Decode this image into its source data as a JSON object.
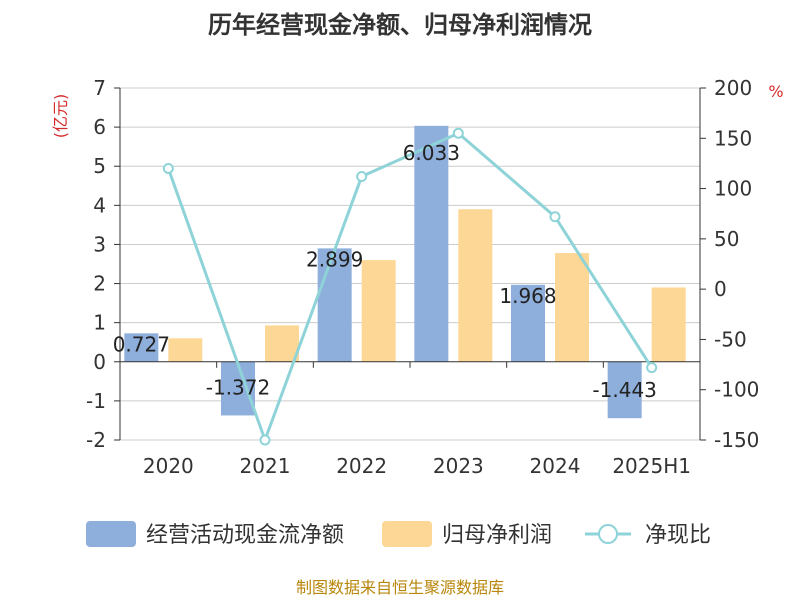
{
  "chart_data": {
    "type": "bar",
    "title": "历年经营现金净额、归母净利润情况",
    "categories": [
      "2020",
      "2021",
      "2022",
      "2023",
      "2024",
      "2025H1"
    ],
    "series": [
      {
        "name": "经营活动现金流净额",
        "kind": "bar",
        "axis": "left",
        "values": [
          0.727,
          -1.372,
          2.899,
          6.033,
          1.968,
          -1.443
        ],
        "labels": [
          "0.727",
          "-1.372",
          "2.899",
          "6.033",
          "1.968",
          "-1.443"
        ]
      },
      {
        "name": "归母净利润",
        "kind": "bar",
        "axis": "left",
        "values": [
          0.6,
          0.93,
          2.6,
          3.9,
          2.78,
          1.9
        ]
      },
      {
        "name": "净现比",
        "kind": "line",
        "axis": "right",
        "values": [
          120,
          -150,
          112,
          155,
          72,
          -78
        ]
      }
    ],
    "y_left": {
      "unit_label": "(亿元)",
      "min": -2,
      "max": 7,
      "ticks": [
        -2,
        -1,
        0,
        1,
        2,
        3,
        4,
        5,
        6,
        7
      ]
    },
    "y_right": {
      "unit_label": "%",
      "min": -150,
      "max": 200,
      "ticks": [
        -150,
        -100,
        -50,
        0,
        50,
        100,
        150,
        200
      ]
    },
    "grid": true,
    "legend_position": "bottom"
  },
  "colors": {
    "cash_flow": "#8eaedb",
    "net_profit": "#fdd795",
    "ratio_line": "#8ed3d8",
    "unit_red": "#d42a2a",
    "source_gold": "#b8860b"
  },
  "footer": {
    "source": "制图数据来自恒生聚源数据库"
  }
}
